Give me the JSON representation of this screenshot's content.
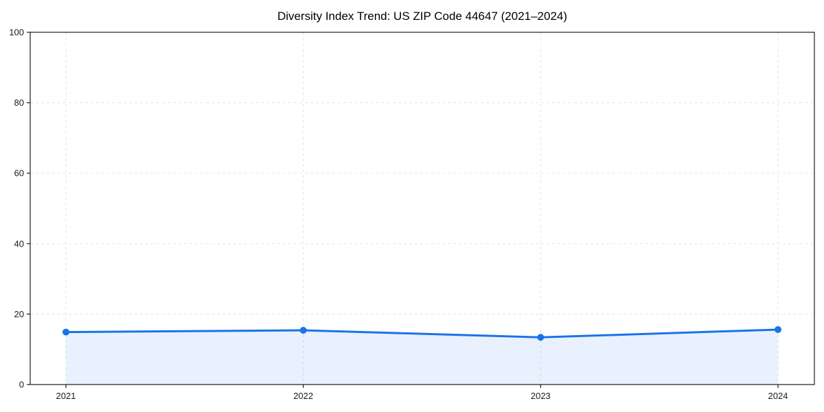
{
  "chart_data": {
    "type": "area",
    "title": "Diversity Index Trend: US ZIP Code 44647 (2021–2024)",
    "x": [
      2021,
      2022,
      2023,
      2024
    ],
    "xticklabels": [
      "2021",
      "2022",
      "2023",
      "2024"
    ],
    "series": [
      {
        "name": "Diversity Index",
        "values": [
          14.9,
          15.4,
          13.4,
          15.6
        ]
      }
    ],
    "xlabel": "",
    "ylabel": "",
    "ylim": [
      0,
      100
    ],
    "yticks": [
      0,
      20,
      40,
      60,
      80,
      100
    ],
    "grid": {
      "visible": true,
      "style": "dashed",
      "color": "#e5e5e5"
    },
    "legend": "none",
    "colors": {
      "line": "#1a73e8",
      "marker": "#1a73e8",
      "area_fill": "rgba(26,115,232,0.10)",
      "axis": "#1a1a1a",
      "tick_label": "#1a1a1a",
      "title": "#000000",
      "background": "#ffffff"
    }
  }
}
